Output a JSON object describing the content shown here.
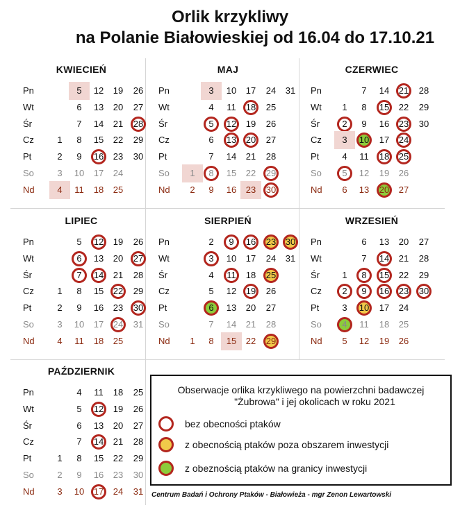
{
  "title_line1": "Orlik krzykliwy",
  "title_line2": "na Polanie Białowieskiej od 16.04 do 17.10.21",
  "day_labels": [
    "Pn",
    "Wt",
    "Śr",
    "Cz",
    "Pt",
    "So",
    "Nd"
  ],
  "colors": {
    "ring": "#b3261e",
    "highlight": "#f1d6d2",
    "yellow": "#f1c94a",
    "green": "#8ccc3a",
    "weekend_sunday": "#8b2a10",
    "saturday": "#8a8a8a"
  },
  "months": [
    {
      "name": "KWIECIEŃ",
      "rows": [
        [
          "",
          "5",
          "12",
          "19",
          "26"
        ],
        [
          "",
          "6",
          "13",
          "20",
          "27"
        ],
        [
          "",
          "7",
          "14",
          "21",
          "28"
        ],
        [
          "1",
          "8",
          "15",
          "22",
          "29"
        ],
        [
          "2",
          "9",
          "16",
          "23",
          "30"
        ],
        [
          "3",
          "10",
          "17",
          "24",
          ""
        ],
        [
          "4",
          "11",
          "18",
          "25",
          ""
        ]
      ],
      "marks": {
        "5": "hl",
        "28": "ring",
        "16": "ring",
        "4": "hl"
      }
    },
    {
      "name": "MAJ",
      "rows": [
        [
          "",
          "3",
          "10",
          "17",
          "24",
          "31"
        ],
        [
          "",
          "4",
          "11",
          "18",
          "25",
          ""
        ],
        [
          "",
          "5",
          "12",
          "19",
          "26",
          ""
        ],
        [
          "",
          "6",
          "13",
          "20",
          "27",
          ""
        ],
        [
          "",
          "7",
          "14",
          "21",
          "28",
          ""
        ],
        [
          "1",
          "8",
          "15",
          "22",
          "29",
          ""
        ],
        [
          "2",
          "9",
          "16",
          "23",
          "30",
          ""
        ]
      ],
      "marks": {
        "3": "hl",
        "18": "ring",
        "5": "ring",
        "12": "ring",
        "13": "ring",
        "20": "ring",
        "1": "hl",
        "8": "ring",
        "29": "ring",
        "23": "hl",
        "30": "ring"
      }
    },
    {
      "name": "CZERWIEC",
      "rows": [
        [
          "",
          "7",
          "14",
          "21",
          "28"
        ],
        [
          "1",
          "8",
          "15",
          "22",
          "29"
        ],
        [
          "2",
          "9",
          "16",
          "23",
          "30"
        ],
        [
          "3",
          "10",
          "17",
          "24",
          ""
        ],
        [
          "4",
          "11",
          "18",
          "25",
          ""
        ],
        [
          "5",
          "12",
          "19",
          "26",
          ""
        ],
        [
          "6",
          "13",
          "20",
          "27",
          ""
        ]
      ],
      "marks": {
        "21": "ring",
        "15": "ring",
        "2": "ring",
        "23": "ring",
        "3": "hl",
        "10": "green",
        "24": "ring",
        "18": "ring",
        "25": "ring",
        "5": "ring",
        "20": "green"
      }
    },
    {
      "name": "LIPIEC",
      "rows": [
        [
          "",
          "5",
          "12",
          "19",
          "26"
        ],
        [
          "",
          "6",
          "13",
          "20",
          "27"
        ],
        [
          "",
          "7",
          "14",
          "21",
          "28"
        ],
        [
          "1",
          "8",
          "15",
          "22",
          "29"
        ],
        [
          "2",
          "9",
          "16",
          "23",
          "30"
        ],
        [
          "3",
          "10",
          "17",
          "24",
          "31"
        ],
        [
          "4",
          "11",
          "18",
          "25",
          ""
        ]
      ],
      "marks": {
        "12": "ring",
        "6": "ring",
        "27": "ring",
        "7": "ring",
        "14": "ring",
        "22": "ring",
        "30": "ring",
        "24": "ring"
      }
    },
    {
      "name": "SIERPIEŃ",
      "rows": [
        [
          "",
          "2",
          "9",
          "16",
          "23",
          "30"
        ],
        [
          "",
          "3",
          "10",
          "17",
          "24",
          "31"
        ],
        [
          "",
          "4",
          "11",
          "18",
          "25",
          ""
        ],
        [
          "",
          "5",
          "12",
          "19",
          "26",
          ""
        ],
        [
          "",
          "6",
          "13",
          "20",
          "27",
          ""
        ],
        [
          "",
          "7",
          "14",
          "21",
          "28",
          ""
        ],
        [
          "1",
          "8",
          "15",
          "22",
          "29",
          ""
        ]
      ],
      "marks": {
        "9": "ring",
        "16": "ring",
        "23": "yellow",
        "30": "yellow",
        "3": "ring",
        "11": "ring",
        "25": "yellow",
        "19": "ring",
        "6": "green",
        "15": "hl",
        "29": "yellow"
      }
    },
    {
      "name": "WRZESIEŃ",
      "rows": [
        [
          "",
          "6",
          "13",
          "20",
          "27"
        ],
        [
          "",
          "7",
          "14",
          "21",
          "28"
        ],
        [
          "1",
          "8",
          "15",
          "22",
          "29"
        ],
        [
          "2",
          "9",
          "16",
          "23",
          "30"
        ],
        [
          "3",
          "10",
          "17",
          "24",
          ""
        ],
        [
          "4",
          "11",
          "18",
          "25",
          ""
        ],
        [
          "5",
          "12",
          "19",
          "26",
          ""
        ]
      ],
      "marks": {
        "14": "ring",
        "8": "ring",
        "15": "ring",
        "2": "ring",
        "9": "ring",
        "16": "ring",
        "23": "ring",
        "30": "ring",
        "10": "yellow",
        "4": "green"
      }
    },
    {
      "name": "PAŹDZIERNIK",
      "rows": [
        [
          "",
          "4",
          "11",
          "18",
          "25"
        ],
        [
          "",
          "5",
          "12",
          "19",
          "26"
        ],
        [
          "",
          "6",
          "13",
          "20",
          "27"
        ],
        [
          "",
          "7",
          "14",
          "21",
          "28"
        ],
        [
          "1",
          "8",
          "15",
          "22",
          "29"
        ],
        [
          "2",
          "9",
          "16",
          "23",
          "30"
        ],
        [
          "3",
          "10",
          "17",
          "24",
          "31"
        ]
      ],
      "marks": {
        "12": "ring",
        "14": "ring",
        "17": "ring"
      }
    }
  ],
  "legend": {
    "title_line1": "Obserwacje orlika krzykliwego na powierzchni badawczej",
    "title_line2": "\"Żubrowa\" i jej okolicach w roku 2021",
    "items": [
      {
        "label": "bez obecności ptaków",
        "fill": "#ffffff"
      },
      {
        "label": "z obecnością ptaków poza obszarem inwestycji",
        "fill": "#f1c94a"
      },
      {
        "label": "z obeznością ptaków na granicy inwestycji",
        "fill": "#8ccc3a"
      }
    ]
  },
  "credit": "Centrum Badań i Ochrony Ptaków - Białowieża - mgr Zenon Lewartowski"
}
